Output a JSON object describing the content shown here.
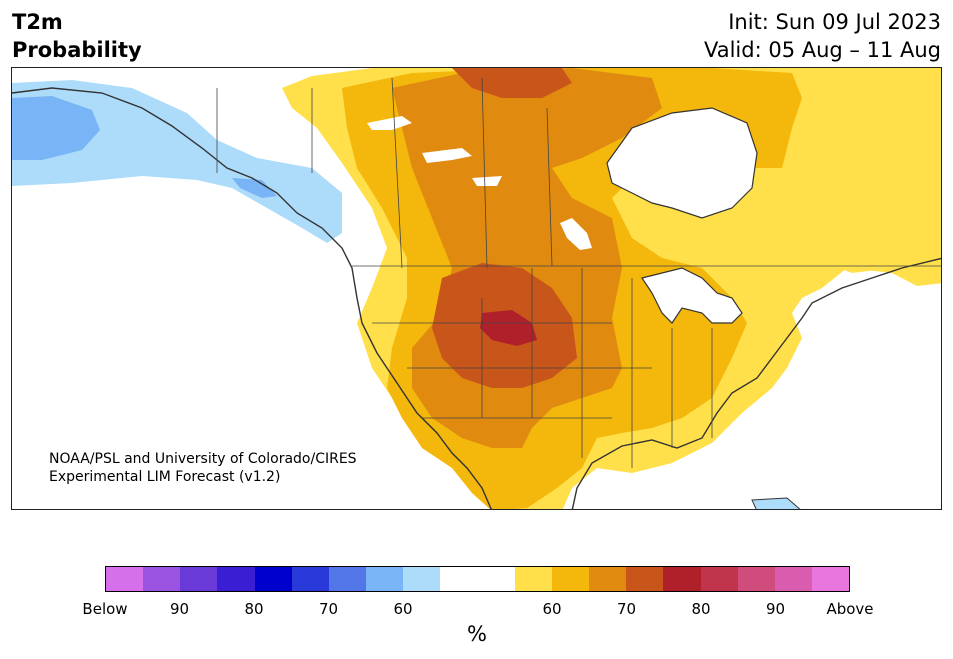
{
  "header": {
    "variable": "T2m",
    "product": "Probability",
    "init": "Init: Sun 09 Jul 2023",
    "valid": "Valid: 05 Aug – 11 Aug"
  },
  "credit": {
    "line1": "NOAA/PSL and University of Colorado/CIRES",
    "line2": "Experimental LIM Forecast (v1.2)"
  },
  "colorbar": {
    "unit": "%",
    "colors": [
      "#d570ea",
      "#9a52e0",
      "#6a3ad8",
      "#3a1ed4",
      "#0000cc",
      "#2a3ada",
      "#5276e8",
      "#78b4f6",
      "#addcfa",
      "#ffffff",
      "#ffffff",
      "#ffe04a",
      "#f4b70c",
      "#e08a10",
      "#c8561a",
      "#b0202a",
      "#c0344c",
      "#d04c7c",
      "#da5cae",
      "#e876de"
    ],
    "ticks": [
      "Below",
      "90",
      "80",
      "70",
      "60",
      "60",
      "70",
      "80",
      "90",
      "Above"
    ]
  }
}
